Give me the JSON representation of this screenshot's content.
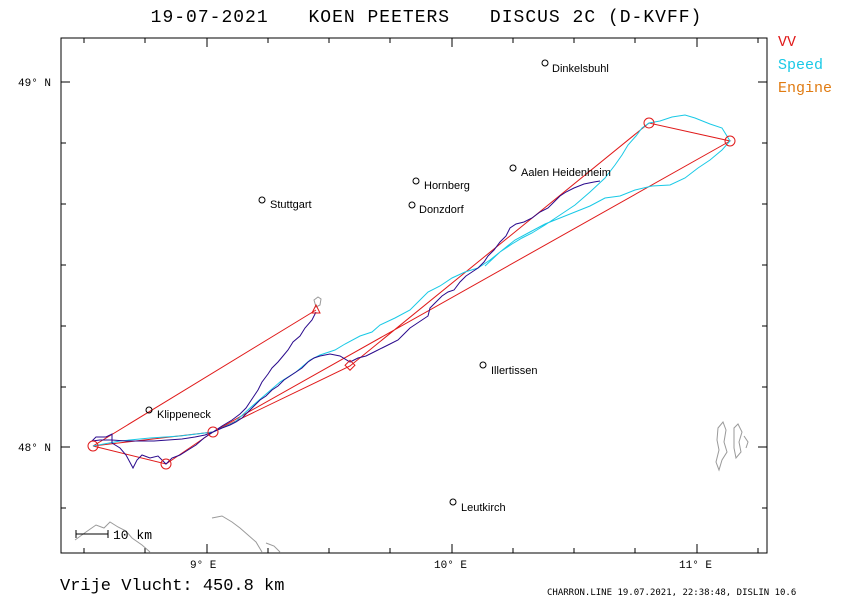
{
  "header": {
    "date": "19-07-2021",
    "pilot": "KOEN PEETERS",
    "glider": "DISCUS 2C (D-KVFF)"
  },
  "legend": [
    {
      "label": "VV",
      "color": "#e01a1a"
    },
    {
      "label": "Speed",
      "color": "#19c9e6"
    },
    {
      "label": "Engine",
      "color": "#e07b12"
    }
  ],
  "axes": {
    "lat_labels": [
      "49° N",
      "48° N"
    ],
    "lon_labels": [
      "9° E",
      "10° E",
      "11° E"
    ]
  },
  "places": [
    {
      "name": "Dinkelsbuhl"
    },
    {
      "name": "Aalen Heidenheim"
    },
    {
      "name": "Hornberg"
    },
    {
      "name": "Donzdorf"
    },
    {
      "name": "Stuttgart"
    },
    {
      "name": "Illertissen"
    },
    {
      "name": "Klippeneck"
    },
    {
      "name": "Leutkirch"
    }
  ],
  "scale_bar": {
    "label": "10 km"
  },
  "footer": {
    "distance_label": "Vrije Vlucht:",
    "distance_value": "450.8 km",
    "credits": "CHARRON.LINE 19.07.2021, 22:38:48, DISLIN 10.6"
  },
  "colors": {
    "task": "#e01a1a",
    "track_outbound": "#19c9e6",
    "track_main": "#2a0a8c",
    "terrain": "#9a9a9a"
  }
}
